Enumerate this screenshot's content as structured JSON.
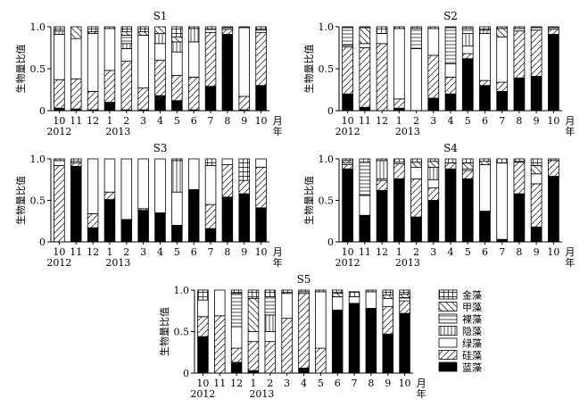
{
  "y_axis_label": "生物量比值",
  "month_suffix": "月",
  "year_suffix": "年",
  "categories": [
    "10",
    "11",
    "12",
    "1",
    "2",
    "3",
    "4",
    "5",
    "6",
    "7",
    "8",
    "9",
    "10"
  ],
  "year_labels": [
    {
      "label": "2012",
      "index": 0
    },
    {
      "label": "2013",
      "index": 4
    }
  ],
  "y_ticks": [
    "0",
    "0.5",
    "1.0"
  ],
  "legend": [
    {
      "key": "jinzao",
      "label": "金藻"
    },
    {
      "key": "jiazao",
      "label": "甲藻"
    },
    {
      "key": "luozao",
      "label": "裸藻"
    },
    {
      "key": "yinzao",
      "label": "隐藻"
    },
    {
      "key": "lvzao",
      "label": "绿藻"
    },
    {
      "key": "guizao",
      "label": "硅藻"
    },
    {
      "key": "lanzao",
      "label": "蓝藻"
    }
  ],
  "chart_data": [
    {
      "type": "bar",
      "stacked": true,
      "title": "S1",
      "ylabel": "生物量比值",
      "ylim": [
        0,
        1
      ],
      "categories": [
        "10",
        "11",
        "12",
        "1",
        "2",
        "3",
        "4",
        "5",
        "6",
        "7",
        "8",
        "9",
        "10"
      ],
      "series": [
        {
          "name": "蓝藻",
          "values": [
            0.03,
            0.02,
            0.01,
            0.1,
            0.01,
            0.01,
            0.18,
            0.12,
            0.01,
            0.29,
            0.91,
            0.01,
            0.3
          ]
        },
        {
          "name": "硅藻",
          "values": [
            0.34,
            0.36,
            0.22,
            0.38,
            0.58,
            0.26,
            0.42,
            0.3,
            0.39,
            0.64,
            0.06,
            0.16,
            0.63
          ]
        },
        {
          "name": "绿藻",
          "values": [
            0.54,
            0.48,
            0.69,
            0.5,
            0.15,
            0.63,
            0.2,
            0.28,
            0.42,
            0.04,
            0.02,
            0.82,
            0.03
          ]
        },
        {
          "name": "隐藻",
          "values": [
            0.04,
            0.0,
            0.0,
            0.0,
            0.06,
            0.0,
            0.12,
            0.12,
            0.16,
            0.0,
            0.0,
            0.0,
            0.0
          ]
        },
        {
          "name": "裸藻",
          "values": [
            0.0,
            0.0,
            0.0,
            0.0,
            0.1,
            0.0,
            0.0,
            0.0,
            0.0,
            0.0,
            0.0,
            0.0,
            0.0
          ]
        },
        {
          "name": "甲藻",
          "values": [
            0.0,
            0.14,
            0.02,
            0.0,
            0.04,
            0.04,
            0.08,
            0.06,
            0.0,
            0.0,
            0.0,
            0.0,
            0.0
          ]
        },
        {
          "name": "金藻",
          "values": [
            0.05,
            0.0,
            0.06,
            0.02,
            0.06,
            0.06,
            0.0,
            0.12,
            0.02,
            0.03,
            0.01,
            0.01,
            0.04
          ]
        }
      ]
    },
    {
      "type": "bar",
      "stacked": true,
      "title": "S2",
      "ylabel": "生物量比值",
      "ylim": [
        0,
        1
      ],
      "categories": [
        "10",
        "11",
        "12",
        "1",
        "2",
        "3",
        "4",
        "5",
        "6",
        "7",
        "8",
        "9",
        "10"
      ],
      "series": [
        {
          "name": "蓝藻",
          "values": [
            0.2,
            0.04,
            0.0,
            0.03,
            0.0,
            0.15,
            0.2,
            0.62,
            0.3,
            0.23,
            0.39,
            0.41,
            0.91
          ]
        },
        {
          "name": "硅藻",
          "values": [
            0.56,
            0.71,
            0.8,
            0.11,
            0.0,
            0.51,
            0.2,
            0.06,
            0.06,
            0.11,
            0.56,
            0.55,
            0.06
          ]
        },
        {
          "name": "绿藻",
          "values": [
            0.02,
            0.05,
            0.12,
            0.84,
            0.74,
            0.32,
            0.16,
            0.09,
            0.56,
            0.54,
            0.03,
            0.03,
            0.02
          ]
        },
        {
          "name": "隐藻",
          "values": [
            0.0,
            0.0,
            0.0,
            0.0,
            0.0,
            0.0,
            0.0,
            0.15,
            0.04,
            0.0,
            0.0,
            0.0,
            0.0
          ]
        },
        {
          "name": "裸藻",
          "values": [
            0.21,
            0.0,
            0.0,
            0.0,
            0.24,
            0.0,
            0.43,
            0.06,
            0.0,
            0.0,
            0.0,
            0.0,
            0.0
          ]
        },
        {
          "name": "甲藻",
          "values": [
            0.0,
            0.19,
            0.0,
            0.0,
            0.0,
            0.0,
            0.0,
            0.0,
            0.0,
            0.1,
            0.0,
            0.0,
            0.0
          ]
        },
        {
          "name": "金藻",
          "values": [
            0.01,
            0.01,
            0.08,
            0.02,
            0.02,
            0.02,
            0.01,
            0.02,
            0.04,
            0.02,
            0.02,
            0.01,
            0.01
          ]
        }
      ]
    },
    {
      "type": "bar",
      "stacked": true,
      "title": "S3",
      "ylabel": "生物量比值",
      "ylim": [
        0,
        1
      ],
      "categories": [
        "10",
        "11",
        "12",
        "1",
        "2",
        "3",
        "4",
        "5",
        "6",
        "7",
        "8",
        "9",
        "10"
      ],
      "series": [
        {
          "name": "蓝藻",
          "values": [
            0.0,
            0.91,
            0.17,
            0.51,
            0.27,
            0.38,
            0.35,
            0.2,
            0.63,
            0.16,
            0.54,
            0.58,
            0.41
          ]
        },
        {
          "name": "硅藻",
          "values": [
            0.92,
            0.04,
            0.17,
            0.09,
            0.0,
            0.02,
            0.0,
            0.0,
            0.0,
            0.29,
            0.39,
            0.16,
            0.49
          ]
        },
        {
          "name": "绿藻",
          "values": [
            0.06,
            0.02,
            0.66,
            0.4,
            0.73,
            0.6,
            0.65,
            0.4,
            0.37,
            0.47,
            0.07,
            0.0,
            0.1
          ]
        },
        {
          "name": "隐藻",
          "values": [
            0.0,
            0.0,
            0.0,
            0.0,
            0.0,
            0.0,
            0.0,
            0.38,
            0.0,
            0.0,
            0.0,
            0.0,
            0.0
          ]
        },
        {
          "name": "裸藻",
          "values": [
            0.0,
            0.0,
            0.0,
            0.0,
            0.0,
            0.0,
            0.0,
            0.0,
            0.0,
            0.0,
            0.0,
            0.0,
            0.0
          ]
        },
        {
          "name": "甲藻",
          "values": [
            0.0,
            0.0,
            0.0,
            0.0,
            0.0,
            0.0,
            0.0,
            0.0,
            0.0,
            0.0,
            0.0,
            0.0,
            0.0
          ]
        },
        {
          "name": "金藻",
          "values": [
            0.02,
            0.03,
            0.0,
            0.0,
            0.0,
            0.0,
            0.0,
            0.02,
            0.0,
            0.08,
            0.0,
            0.26,
            0.0
          ]
        }
      ]
    },
    {
      "type": "bar",
      "stacked": true,
      "title": "S4",
      "ylabel": "生物量比值",
      "ylim": [
        0,
        1
      ],
      "categories": [
        "10",
        "11",
        "12",
        "1",
        "2",
        "3",
        "4",
        "5",
        "6",
        "7",
        "8",
        "9",
        "10"
      ],
      "series": [
        {
          "name": "蓝藻",
          "values": [
            0.88,
            0.32,
            0.62,
            0.76,
            0.3,
            0.5,
            0.88,
            0.76,
            0.37,
            0.03,
            0.58,
            0.18,
            0.79
          ]
        },
        {
          "name": "硅藻",
          "values": [
            0.05,
            0.0,
            0.12,
            0.18,
            0.46,
            0.15,
            0.07,
            0.1,
            0.0,
            0.0,
            0.38,
            0.52,
            0.19
          ]
        },
        {
          "name": "绿藻",
          "values": [
            0.02,
            0.24,
            0.02,
            0.02,
            0.14,
            0.1,
            0.0,
            0.02,
            0.56,
            0.92,
            0.01,
            0.12,
            0.0
          ]
        },
        {
          "name": "隐藻",
          "values": [
            0.0,
            0.0,
            0.22,
            0.0,
            0.0,
            0.15,
            0.0,
            0.0,
            0.0,
            0.0,
            0.0,
            0.0,
            0.0
          ]
        },
        {
          "name": "裸藻",
          "values": [
            0.0,
            0.4,
            0.0,
            0.0,
            0.0,
            0.0,
            0.0,
            0.0,
            0.0,
            0.0,
            0.0,
            0.0,
            0.0
          ]
        },
        {
          "name": "甲藻",
          "values": [
            0.03,
            0.0,
            0.0,
            0.0,
            0.06,
            0.07,
            0.0,
            0.07,
            0.04,
            0.0,
            0.0,
            0.1,
            0.0
          ]
        },
        {
          "name": "金藻",
          "values": [
            0.02,
            0.04,
            0.02,
            0.04,
            0.04,
            0.03,
            0.05,
            0.05,
            0.03,
            0.05,
            0.03,
            0.08,
            0.02
          ]
        }
      ]
    },
    {
      "type": "bar",
      "stacked": true,
      "title": "S5",
      "ylabel": "生物量比值",
      "ylim": [
        0,
        1
      ],
      "categories": [
        "10",
        "11",
        "12",
        "1",
        "2",
        "3",
        "4",
        "5",
        "6",
        "7",
        "8",
        "9",
        "10"
      ],
      "series": [
        {
          "name": "蓝藻",
          "values": [
            0.44,
            0.0,
            0.13,
            0.03,
            0.0,
            0.0,
            0.06,
            0.0,
            0.76,
            0.84,
            0.78,
            0.47,
            0.72
          ]
        },
        {
          "name": "硅藻",
          "values": [
            0.24,
            0.69,
            0.17,
            0.35,
            0.38,
            0.66,
            0.9,
            0.3,
            0.0,
            0.0,
            0.0,
            0.33,
            0.15
          ]
        },
        {
          "name": "绿藻",
          "values": [
            0.2,
            0.31,
            0.26,
            0.12,
            0.12,
            0.3,
            0.02,
            0.68,
            0.16,
            0.08,
            0.2,
            0.1,
            0.0
          ]
        },
        {
          "name": "隐藻",
          "values": [
            0.0,
            0.0,
            0.0,
            0.0,
            0.2,
            0.0,
            0.0,
            0.0,
            0.0,
            0.0,
            0.0,
            0.0,
            0.0
          ]
        },
        {
          "name": "裸藻",
          "values": [
            0.0,
            0.0,
            0.4,
            0.0,
            0.22,
            0.0,
            0.0,
            0.0,
            0.0,
            0.0,
            0.0,
            0.0,
            0.04
          ]
        },
        {
          "name": "甲藻",
          "values": [
            0.0,
            0.0,
            0.0,
            0.4,
            0.0,
            0.0,
            0.0,
            0.0,
            0.04,
            0.0,
            0.0,
            0.04,
            0.04
          ]
        },
        {
          "name": "金藻",
          "values": [
            0.12,
            0.0,
            0.04,
            0.1,
            0.08,
            0.04,
            0.02,
            0.02,
            0.04,
            0.06,
            0.02,
            0.06,
            0.05
          ]
        }
      ]
    }
  ]
}
